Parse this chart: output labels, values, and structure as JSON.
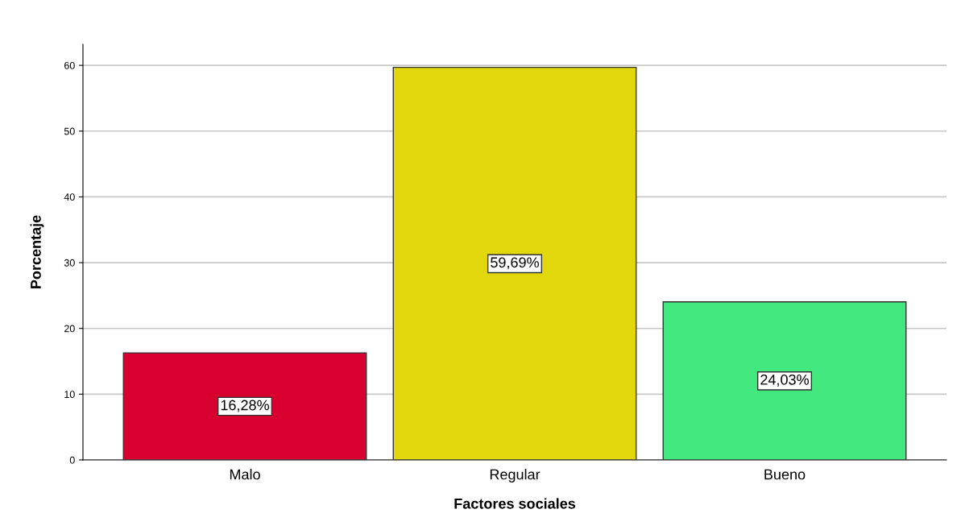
{
  "chart_data": {
    "type": "bar",
    "xlabel": "Factores sociales",
    "ylabel": "Porcentaje",
    "categories": [
      "Malo",
      "Regular",
      "Bueno"
    ],
    "values": [
      16.28,
      59.69,
      24.03
    ],
    "colors": [
      "#d7002f",
      "#e2d70d",
      "#42e87e"
    ],
    "value_labels": [
      "16,28%",
      "59,69%",
      "24,03%"
    ],
    "ylim": [
      0,
      63.2
    ],
    "yticks": [
      0,
      10,
      20,
      30,
      40,
      50,
      60
    ],
    "grid": "y",
    "legend": false
  }
}
